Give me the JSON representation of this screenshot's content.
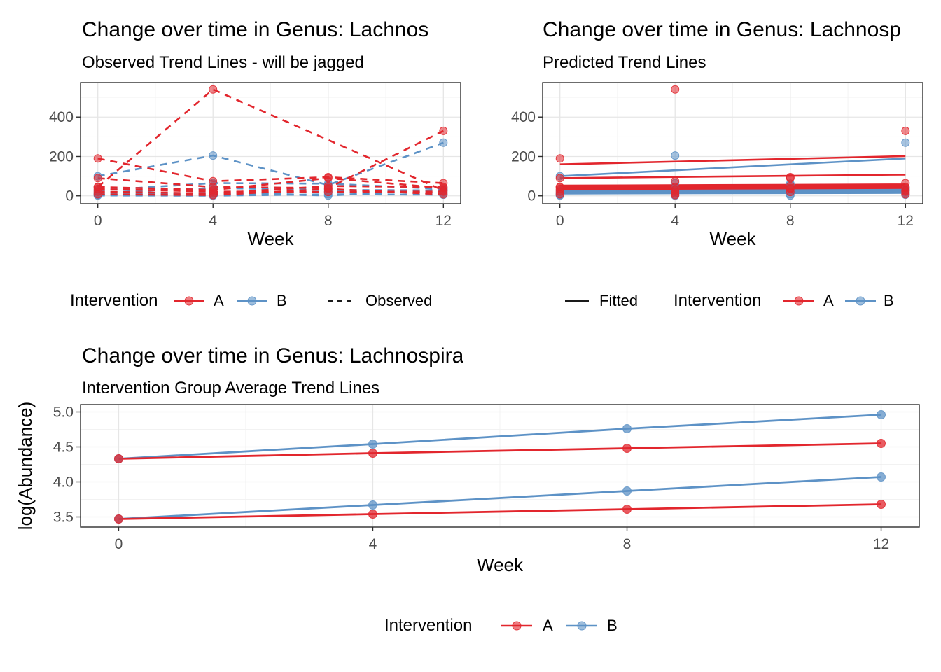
{
  "figure": {
    "background": "#ffffff"
  },
  "colors": {
    "intervention_a": "#e2262d",
    "intervention_b": "#5d92c6",
    "key_line": "#1a1a1a",
    "axis_text": "#4d4d4d",
    "grid_major": "#e6e6e6",
    "grid_minor": "#f2f2f2",
    "panel_border": "#2e2e2e"
  },
  "legends": {
    "observed": {
      "group_title": "Intervention",
      "item_a": "A",
      "item_b": "B",
      "linetype_label": "Observed"
    },
    "predicted": {
      "linetype_label": "Fitted",
      "group_title": "Intervention",
      "item_a": "A",
      "item_b": "B"
    },
    "average": {
      "group_title": "Intervention",
      "item_a": "A",
      "item_b": "B"
    }
  },
  "chart_data": [
    {
      "type": "line",
      "title": "Change over time in Genus: Lachnos",
      "subtitle": "Observed Trend Lines - will be jagged",
      "xlabel": "Week",
      "line_style": "dashed",
      "x": [
        0,
        4,
        8,
        12
      ],
      "xlim": [
        -0.6,
        12.6
      ],
      "ylim": [
        -40,
        575
      ],
      "x_ticks": [
        {
          "v": 0,
          "label": "0"
        },
        {
          "v": 4,
          "label": "4"
        },
        {
          "v": 8,
          "label": "8"
        },
        {
          "v": 12,
          "label": "12"
        }
      ],
      "y_ticks": [
        {
          "v": 0,
          "label": "0"
        },
        {
          "v": 200,
          "label": "200"
        },
        {
          "v": 400,
          "label": "400"
        }
      ],
      "x_minor": [
        2,
        6,
        10
      ],
      "y_minor": [
        100,
        300,
        500
      ],
      "grid": true,
      "legend_position": "bottom",
      "series": [
        {
          "name": "B-subj1",
          "group": "B",
          "values": [
            100,
            205,
            55,
            270
          ]
        },
        {
          "name": "B-subj2",
          "group": "B",
          "values": [
            28,
            65,
            62,
            35
          ]
        },
        {
          "name": "B-subj3",
          "group": "B",
          "values": [
            16,
            40,
            30,
            28
          ]
        },
        {
          "name": "B-subj4",
          "group": "B",
          "values": [
            10,
            14,
            2,
            32
          ]
        },
        {
          "name": "B-subj5",
          "group": "B",
          "values": [
            5,
            6,
            22,
            15
          ]
        },
        {
          "name": "B-subj6",
          "group": "B",
          "values": [
            2,
            1,
            8,
            6
          ]
        },
        {
          "name": "A-subj1",
          "group": "A",
          "values": [
            45,
            540,
            null,
            28
          ]
        },
        {
          "name": "A-subj2",
          "group": "A",
          "values": [
            190,
            75,
            95,
            65
          ]
        },
        {
          "name": "A-subj3",
          "group": "A",
          "values": [
            90,
            45,
            40,
            330
          ]
        },
        {
          "name": "A-subj4",
          "group": "A",
          "values": [
            45,
            30,
            90,
            40
          ]
        },
        {
          "name": "A-subj5",
          "group": "A",
          "values": [
            22,
            12,
            50,
            45
          ]
        },
        {
          "name": "A-subj6",
          "group": "A",
          "values": [
            8,
            4,
            35,
            8
          ]
        },
        {
          "name": "A-subj7",
          "group": "A",
          "values": [
            35,
            22,
            20,
            22
          ]
        }
      ]
    },
    {
      "type": "line",
      "title": "Change over time in Genus: Lachnosp",
      "subtitle": "Predicted Trend Lines",
      "xlabel": "Week",
      "line_style": "solid",
      "x": [
        0,
        4,
        8,
        12
      ],
      "xlim": [
        -0.6,
        12.6
      ],
      "ylim": [
        -40,
        575
      ],
      "x_ticks": [
        {
          "v": 0,
          "label": "0"
        },
        {
          "v": 4,
          "label": "4"
        },
        {
          "v": 8,
          "label": "8"
        },
        {
          "v": 12,
          "label": "12"
        }
      ],
      "y_ticks": [
        {
          "v": 0,
          "label": "0"
        },
        {
          "v": 200,
          "label": "200"
        },
        {
          "v": 400,
          "label": "400"
        }
      ],
      "x_minor": [
        2,
        6,
        10
      ],
      "y_minor": [
        100,
        300,
        500
      ],
      "grid": true,
      "legend_position": "bottom",
      "series": [
        {
          "name": "fit-B1",
          "group": "B",
          "draw": "line",
          "x": [
            0,
            12
          ],
          "values": [
            100,
            190
          ]
        },
        {
          "name": "fit-B2",
          "group": "B",
          "draw": "line",
          "x": [
            0,
            12
          ],
          "values": [
            28,
            32
          ]
        },
        {
          "name": "fit-B3",
          "group": "B",
          "draw": "line",
          "x": [
            0,
            12
          ],
          "values": [
            22,
            26
          ]
        },
        {
          "name": "fit-B4",
          "group": "B",
          "draw": "line",
          "x": [
            0,
            12
          ],
          "values": [
            16,
            20
          ]
        },
        {
          "name": "fit-B5",
          "group": "B",
          "draw": "line",
          "x": [
            0,
            12
          ],
          "values": [
            12,
            15
          ]
        },
        {
          "name": "fit-A1",
          "group": "A",
          "draw": "line",
          "x": [
            0,
            12
          ],
          "values": [
            160,
            202
          ]
        },
        {
          "name": "fit-A2",
          "group": "A",
          "draw": "line",
          "x": [
            0,
            12
          ],
          "values": [
            90,
            108
          ]
        },
        {
          "name": "fit-A3",
          "group": "A",
          "draw": "line",
          "x": [
            0,
            12
          ],
          "values": [
            52,
            58
          ]
        },
        {
          "name": "fit-A4",
          "group": "A",
          "draw": "line",
          "x": [
            0,
            12
          ],
          "values": [
            46,
            52
          ]
        },
        {
          "name": "fit-A5",
          "group": "A",
          "draw": "line",
          "x": [
            0,
            12
          ],
          "values": [
            40,
            46
          ]
        },
        {
          "name": "fit-A6",
          "group": "A",
          "draw": "line",
          "x": [
            0,
            12
          ],
          "values": [
            34,
            40
          ]
        },
        {
          "name": "obs-B1",
          "group": "B",
          "draw": "marker",
          "values": [
            100,
            205,
            55,
            270
          ]
        },
        {
          "name": "obs-B2",
          "group": "B",
          "draw": "marker",
          "values": [
            28,
            65,
            62,
            35
          ]
        },
        {
          "name": "obs-B3",
          "group": "B",
          "draw": "marker",
          "values": [
            16,
            40,
            30,
            28
          ]
        },
        {
          "name": "obs-B4",
          "group": "B",
          "draw": "marker",
          "values": [
            10,
            14,
            2,
            32
          ]
        },
        {
          "name": "obs-B5",
          "group": "B",
          "draw": "marker",
          "values": [
            5,
            6,
            22,
            15
          ]
        },
        {
          "name": "obs-B6",
          "group": "B",
          "draw": "marker",
          "values": [
            2,
            1,
            8,
            6
          ]
        },
        {
          "name": "obs-A1",
          "group": "A",
          "draw": "marker",
          "values": [
            45,
            540,
            null,
            28
          ]
        },
        {
          "name": "obs-A2",
          "group": "A",
          "draw": "marker",
          "values": [
            190,
            75,
            95,
            65
          ]
        },
        {
          "name": "obs-A3",
          "group": "A",
          "draw": "marker",
          "values": [
            90,
            45,
            40,
            330
          ]
        },
        {
          "name": "obs-A4",
          "group": "A",
          "draw": "marker",
          "values": [
            45,
            30,
            90,
            40
          ]
        },
        {
          "name": "obs-A5",
          "group": "A",
          "draw": "marker",
          "values": [
            22,
            12,
            50,
            45
          ]
        },
        {
          "name": "obs-A6",
          "group": "A",
          "draw": "marker",
          "values": [
            8,
            4,
            35,
            8
          ]
        },
        {
          "name": "obs-A7",
          "group": "A",
          "draw": "marker",
          "values": [
            35,
            22,
            20,
            22
          ]
        }
      ]
    },
    {
      "type": "line",
      "title": "Change over time in Genus: Lachnospira",
      "subtitle": "Intervention Group Average Trend Lines",
      "xlabel": "Week",
      "ylabel": "log(Abundance)",
      "line_style": "solid",
      "x": [
        0,
        4,
        8,
        12
      ],
      "xlim": [
        -0.6,
        12.6
      ],
      "ylim": [
        3.355,
        5.105
      ],
      "x_ticks": [
        {
          "v": 0,
          "label": "0"
        },
        {
          "v": 4,
          "label": "4"
        },
        {
          "v": 8,
          "label": "8"
        },
        {
          "v": 12,
          "label": "12"
        }
      ],
      "y_ticks": [
        {
          "v": 3.5,
          "label": "3.5"
        },
        {
          "v": 4.0,
          "label": "4.0"
        },
        {
          "v": 4.5,
          "label": "4.5"
        },
        {
          "v": 5.0,
          "label": "5.0"
        }
      ],
      "x_minor": [
        2,
        6,
        10
      ],
      "y_minor": [
        3.75,
        4.25,
        4.75
      ],
      "grid": true,
      "legend_position": "bottom",
      "series": [
        {
          "name": "B-mean-upper",
          "group": "B",
          "values": [
            4.33,
            4.54,
            4.76,
            4.96
          ]
        },
        {
          "name": "B-mean-lower",
          "group": "B",
          "values": [
            3.47,
            3.67,
            3.87,
            4.07
          ]
        },
        {
          "name": "A-mean-upper",
          "group": "A",
          "values": [
            4.33,
            4.41,
            4.48,
            4.55
          ]
        },
        {
          "name": "A-mean-lower",
          "group": "A",
          "values": [
            3.47,
            3.54,
            3.61,
            3.68
          ]
        }
      ]
    }
  ]
}
